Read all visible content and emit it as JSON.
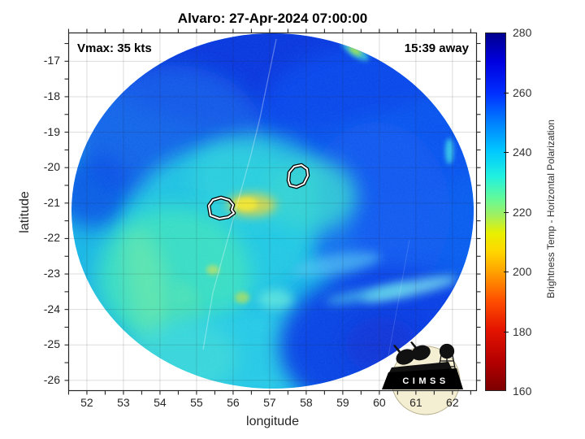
{
  "title": "Alvaro: 27-Apr-2024 07:00:00",
  "overlays": {
    "vmax": "Vmax: 35 kts",
    "eta": "15:39 away"
  },
  "axes": {
    "xlabel": "longitude",
    "ylabel": "latitude",
    "xticks": [
      52,
      53,
      54,
      55,
      56,
      57,
      58,
      59,
      60,
      61,
      62
    ],
    "yticks": [
      -17,
      -18,
      -19,
      -20,
      -21,
      -22,
      -23,
      -24,
      -25,
      -26
    ],
    "xlim": [
      51.49,
      62.67
    ],
    "ylim": [
      -26.3,
      -16.19
    ],
    "minor_step": 0.5
  },
  "colorbar": {
    "label": "Brightness Temp - Horizontal Polarization",
    "min": 160,
    "max": 280,
    "ticks": [
      280,
      260,
      240,
      220,
      200,
      180,
      160
    ],
    "stops": [
      {
        "at": 0.0,
        "color": "#00008F"
      },
      {
        "at": 0.08,
        "color": "#0000E0"
      },
      {
        "at": 0.17,
        "color": "#0030FF"
      },
      {
        "at": 0.25,
        "color": "#0080FF"
      },
      {
        "at": 0.33,
        "color": "#00C8FF"
      },
      {
        "at": 0.4,
        "color": "#20F0E0"
      },
      {
        "at": 0.46,
        "color": "#60FA9C"
      },
      {
        "at": 0.51,
        "color": "#A0F060"
      },
      {
        "at": 0.56,
        "color": "#E8F000"
      },
      {
        "at": 0.61,
        "color": "#FFD800"
      },
      {
        "at": 0.67,
        "color": "#FFA000"
      },
      {
        "at": 0.75,
        "color": "#FF4E00"
      },
      {
        "at": 0.83,
        "color": "#E41400"
      },
      {
        "at": 0.92,
        "color": "#B40000"
      },
      {
        "at": 1.0,
        "color": "#7D0000"
      }
    ]
  },
  "logo": {
    "text": "CIMSS"
  },
  "chart_data": {
    "type": "heatmap",
    "title": "Alvaro: 27-Apr-2024 07:00:00",
    "storm_name": "Alvaro",
    "valid_time": "27-Apr-2024 07:00:00",
    "vmax_kts": 35,
    "obs_time_offset": "15:39 away",
    "xlabel": "longitude",
    "ylabel": "latitude",
    "xlim": [
      51.5,
      62.7
    ],
    "ylim": [
      -26.3,
      -16.2
    ],
    "value_label": "Brightness Temp - Horizontal Polarization",
    "value_range_K": [
      160,
      280
    ],
    "grid": true,
    "swath_disk": {
      "center_lon": 57.1,
      "center_lat": -21.2,
      "radius_lon_deg": 5.5,
      "radius_lat_deg": 5.0
    },
    "features": [
      {
        "name": "white_contour_fix_west",
        "lon": 55.7,
        "lat": -21.2
      },
      {
        "name": "white_contour_fix_east",
        "lon": 57.8,
        "lat": -20.3
      },
      {
        "name": "warm_spot_yellow",
        "lon": 56.5,
        "lat": -21.0,
        "approx_K": 214
      },
      {
        "name": "cold_blue_cap_north",
        "lon": 57.0,
        "lat": -17.5,
        "approx_K": 262
      },
      {
        "name": "deep_blue_southeast",
        "lon": 58.5,
        "lat": -24.5,
        "approx_K": 262
      },
      {
        "name": "cyan_region_center_west",
        "lon": 55.0,
        "lat": -22.0,
        "approx_K": 238
      },
      {
        "name": "green_band_southwest",
        "lon": 54.0,
        "lat": -22.5,
        "approx_K": 228
      },
      {
        "name": "green_edge_streak_northeast",
        "lon": 59.4,
        "lat": -16.7,
        "approx_K": 222
      },
      {
        "name": "cyan_streak_east_edge",
        "lon": 61.9,
        "lat": -19.5,
        "approx_K": 240
      }
    ]
  }
}
